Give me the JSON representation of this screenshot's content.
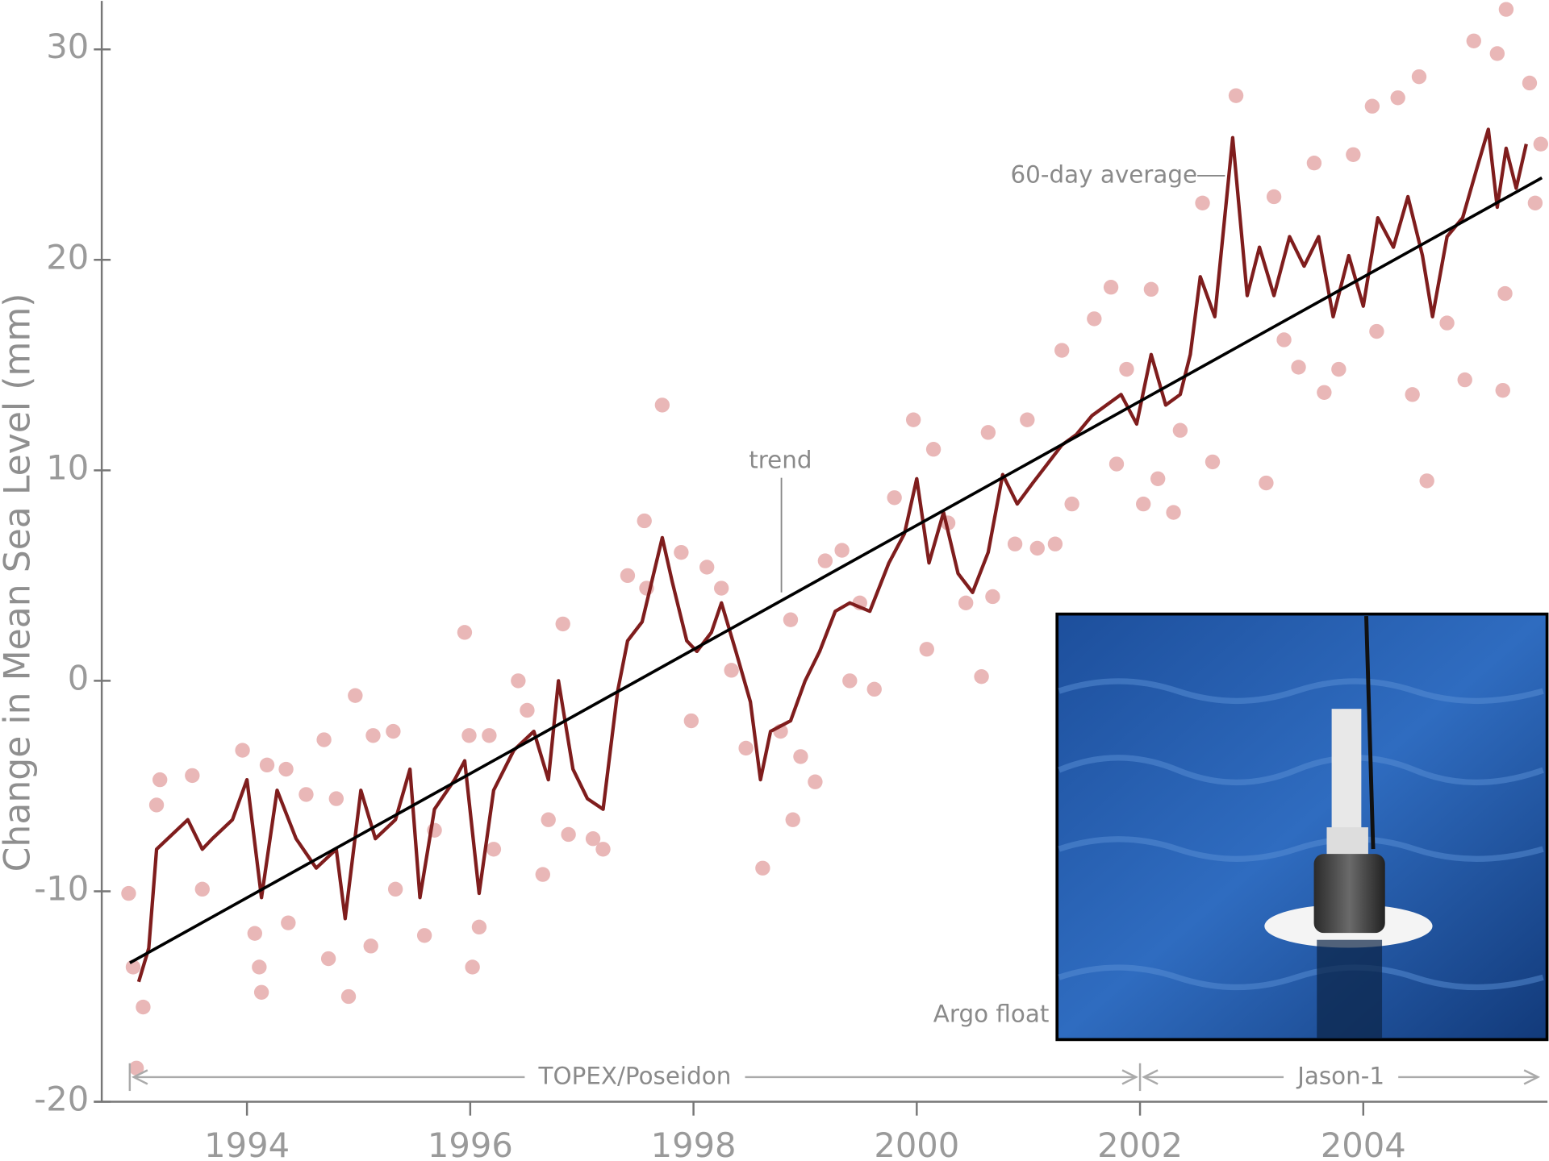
{
  "chart_data": {
    "type": "scatter",
    "ylabel": "Change in Mean Sea Level (mm)",
    "xlim": [
      1992.9,
      2005.65
    ],
    "ylim": [
      -20,
      32.3
    ],
    "xticks": [
      1994,
      1996,
      1998,
      2000,
      2002,
      2004
    ],
    "yticks": [
      -20,
      -10,
      0,
      10,
      20,
      30
    ],
    "series": [
      {
        "type": "scatter",
        "color": "#e9b7b7",
        "x": [
          1992.94,
          1993.01,
          1993.07,
          1992.98,
          1993.19,
          1993.22,
          1993.51,
          1993.6,
          1993.96,
          1994.07,
          1994.11,
          1994.13,
          1994.18,
          1994.35,
          1994.37,
          1994.53,
          1994.69,
          1994.73,
          1994.8,
          1994.91,
          1994.97,
          1995.13,
          1995.11,
          1995.31,
          1995.33,
          1995.59,
          1995.68,
          1995.95,
          1996.02,
          1996.08,
          1995.99,
          1996.17,
          1996.21,
          1996.43,
          1996.51,
          1996.65,
          1996.7,
          1996.83,
          1996.88,
          1997.1,
          1997.19,
          1997.41,
          1997.56,
          1997.58,
          1997.72,
          1997.89,
          1997.98,
          1998.12,
          1998.25,
          1998.34,
          1998.47,
          1998.62,
          1998.78,
          1998.87,
          1998.89,
          1998.96,
          1999.09,
          1999.18,
          1999.33,
          1999.4,
          1999.49,
          1999.62,
          1999.8,
          1999.97,
          2000.09,
          2000.15,
          2000.28,
          2000.44,
          2000.58,
          2000.64,
          2000.68,
          2000.88,
          2000.99,
          2001.08,
          2001.24,
          2001.3,
          2001.39,
          2001.59,
          2001.74,
          2001.79,
          2001.88,
          2002.03,
          2002.1,
          2002.16,
          2002.3,
          2002.36,
          2002.65,
          2002.56,
          2002.86,
          2003.13,
          2003.2,
          2003.29,
          2003.42,
          2003.56,
          2003.65,
          2003.78,
          2003.91,
          2004.08,
          2004.12,
          2004.31,
          2004.44,
          2004.5,
          2004.57,
          2004.75,
          2004.91,
          2004.99,
          2005.2,
          2005.25,
          2005.27,
          2005.28,
          2005.49,
          2005.54,
          2005.59
        ],
        "values": [
          -10.1,
          -18.4,
          -15.5,
          -13.6,
          -5.9,
          -4.7,
          -4.5,
          -9.9,
          -3.3,
          -12.0,
          -13.6,
          -14.8,
          -4.0,
          -4.2,
          -11.5,
          -5.4,
          -2.8,
          -13.2,
          -5.6,
          -15.0,
          -0.7,
          -2.6,
          -12.6,
          -2.4,
          -9.9,
          -12.1,
          -7.1,
          2.3,
          -13.6,
          -11.7,
          -2.6,
          -2.6,
          -8.0,
          0.0,
          -1.4,
          -9.2,
          -6.6,
          2.7,
          -7.3,
          -7.5,
          -8.0,
          5.0,
          7.6,
          4.4,
          13.1,
          6.1,
          -1.9,
          5.4,
          4.4,
          0.5,
          -3.2,
          -8.9,
          -2.4,
          2.9,
          -6.6,
          -3.6,
          -4.8,
          5.7,
          6.2,
          0.0,
          3.7,
          -0.4,
          8.7,
          12.4,
          1.5,
          11.0,
          7.5,
          3.7,
          0.2,
          11.8,
          4.0,
          6.5,
          12.4,
          6.3,
          6.5,
          15.7,
          8.4,
          17.2,
          18.7,
          10.3,
          14.8,
          8.4,
          18.6,
          9.6,
          8.0,
          11.9,
          10.4,
          22.7,
          27.8,
          9.4,
          23.0,
          16.2,
          14.9,
          24.6,
          13.7,
          14.8,
          25.0,
          27.3,
          16.6,
          27.7,
          13.6,
          28.7,
          9.5,
          17.0,
          14.3,
          30.4,
          29.8,
          13.8,
          18.4,
          31.9,
          28.4,
          22.7,
          25.5
        ]
      },
      {
        "type": "line",
        "name": "60-day average",
        "color": "#7f1d1d",
        "x": [
          1993.03,
          1993.12,
          1993.19,
          1993.29,
          1993.47,
          1993.6,
          1993.69,
          1993.87,
          1994.0,
          1994.13,
          1994.27,
          1994.44,
          1994.62,
          1994.8,
          1994.88,
          1995.02,
          1995.15,
          1995.33,
          1995.46,
          1995.55,
          1995.68,
          1995.86,
          1995.95,
          1996.08,
          1996.21,
          1996.39,
          1996.57,
          1996.7,
          1996.79,
          1996.92,
          1997.05,
          1997.19,
          1997.32,
          1997.41,
          1997.54,
          1997.72,
          1997.81,
          1997.94,
          1998.03,
          1998.16,
          1998.25,
          1998.38,
          1998.51,
          1998.6,
          1998.69,
          1998.87,
          1999.0,
          1999.13,
          1999.27,
          1999.4,
          1999.58,
          1999.75,
          1999.89,
          2000.0,
          2000.11,
          2000.24,
          2000.37,
          2000.5,
          2000.64,
          2000.77,
          2000.9,
          2001.04,
          2001.17,
          2001.3,
          2001.43,
          2001.57,
          2001.7,
          2001.83,
          2001.97,
          2002.1,
          2002.23,
          2002.36,
          2002.45,
          2002.54,
          2002.67,
          2002.83,
          2002.96,
          2003.07,
          2003.2,
          2003.34,
          2003.47,
          2003.6,
          2003.73,
          2003.87,
          2004.0,
          2004.13,
          2004.27,
          2004.4,
          2004.53,
          2004.62,
          2004.75,
          2004.89,
          2005.02,
          2005.12,
          2005.2,
          2005.28,
          2005.37,
          2005.46
        ],
        "values": [
          -14.3,
          -12.7,
          -8.0,
          -7.5,
          -6.6,
          -8.0,
          -7.5,
          -6.6,
          -4.7,
          -10.3,
          -5.2,
          -7.5,
          -8.9,
          -8.0,
          -11.3,
          -5.2,
          -7.5,
          -6.6,
          -4.2,
          -10.3,
          -6.1,
          -4.7,
          -3.8,
          -10.1,
          -5.2,
          -3.3,
          -2.4,
          -4.7,
          0.0,
          -4.2,
          -5.6,
          -6.1,
          -0.5,
          1.9,
          2.8,
          6.8,
          4.7,
          1.9,
          1.4,
          2.3,
          3.7,
          1.4,
          -1.0,
          -4.7,
          -2.4,
          -1.9,
          0.0,
          1.4,
          3.3,
          3.7,
          3.3,
          5.6,
          7.0,
          9.6,
          5.6,
          8.0,
          5.1,
          4.2,
          6.1,
          9.8,
          8.4,
          9.4,
          10.3,
          11.2,
          11.7,
          12.6,
          13.1,
          13.6,
          12.2,
          15.5,
          13.1,
          13.6,
          15.5,
          19.2,
          17.3,
          25.8,
          18.3,
          20.6,
          18.3,
          21.1,
          19.7,
          21.1,
          17.3,
          20.2,
          17.8,
          22.0,
          20.6,
          23.0,
          20.2,
          17.3,
          21.1,
          22.0,
          24.4,
          26.2,
          22.5,
          25.3,
          23.4,
          25.5
        ]
      },
      {
        "type": "line",
        "name": "trend",
        "color": "#000000",
        "x": [
          1992.95,
          2005.6
        ],
        "values": [
          -13.4,
          23.9
        ]
      }
    ],
    "missions": [
      {
        "name": "TOPEX/Poseidon",
        "start": 1992.95,
        "end": 2002.0
      },
      {
        "name": "Jason-1",
        "start": 2002.0,
        "end": 2005.6
      }
    ],
    "photo_caption": "Argo float"
  }
}
